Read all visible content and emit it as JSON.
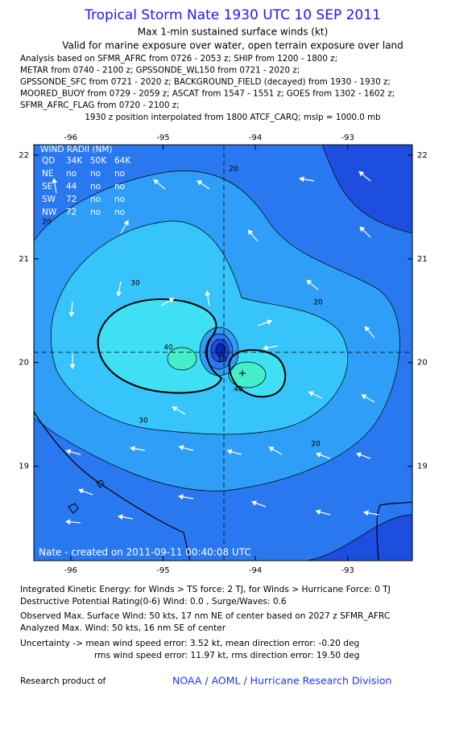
{
  "header": {
    "title": "Tropical Storm Nate 1930 UTC 10 SEP 2011",
    "lines": [
      "Max 1-min sustained surface winds (kt)",
      "Valid for marine exposure over water, open terrain exposure over land"
    ]
  },
  "analysis": [
    "Analysis based on SFMR_AFRC from 0726 - 2053 z; SHIP from 1200 - 1800 z;",
    "METAR from 0740 - 2100 z; GPSSONDE_WL150 from 0721 - 2020 z;",
    "GPSSONDE_SFC from 0721 - 2020 z; BACKGROUND_FIELD (decayed) from 1930 - 1930 z;",
    "MOORED_BUOY from 0729 - 2059 z; ASCAT from 1547 - 1551 z; GOES from 1302 - 1602 z;",
    "SFMR_AFRC_FLAG from 0720 - 2100 z;"
  ],
  "position_note": "1930 z position interpolated from 1800 ATCF_CARQ; mslp = 1000.0 mb",
  "map": {
    "xlim": [
      -96.4,
      -92.3
    ],
    "ylim": [
      18.09,
      22.1
    ],
    "xticks": [
      -96,
      -95,
      -94,
      -93
    ],
    "yticks": [
      19,
      20,
      21,
      22
    ],
    "wind_radii": {
      "title": "WIND RADII (NM)",
      "rows": [
        [
          "QD",
          "34K",
          "50K",
          "64K"
        ],
        [
          "NE",
          "no",
          "no",
          "no"
        ],
        [
          "SE",
          "44",
          "no",
          "no"
        ],
        [
          "SW",
          "72",
          "no",
          "no"
        ],
        [
          "NW",
          "72",
          "no",
          "no"
        ]
      ]
    },
    "contour_labels": [
      "20",
      "20",
      "20",
      "30",
      "30",
      "40",
      "40",
      "10",
      "20"
    ],
    "credit": "Nate - created on 2011-09-11 00:40:08 UTC"
  },
  "footer": {
    "lines": [
      "Integrated Kinetic Energy:  for Winds > TS force: 2 TJ,  for Winds > Hurricane Force: 0 TJ",
      "Destructive Potential Rating(0-6)   Wind: 0.0 , Surge/Waves: 0.6",
      "Observed Max. Surface Wind: 50 kts, 17 nm NE of center based on 2027 z SFMR_AFRC",
      "Analyzed Max. Wind: 50 kts, 16 nm SE of center",
      "Uncertainty -> mean wind speed error: 3.52 kt,   mean direction error:  -0.20 deg",
      "rms wind speed error: 11.97 kt,   rms direction error: 19.50 deg"
    ]
  },
  "research": {
    "label": "Research product of",
    "org": "NOAA / AOML / Hurricane Research Division"
  }
}
